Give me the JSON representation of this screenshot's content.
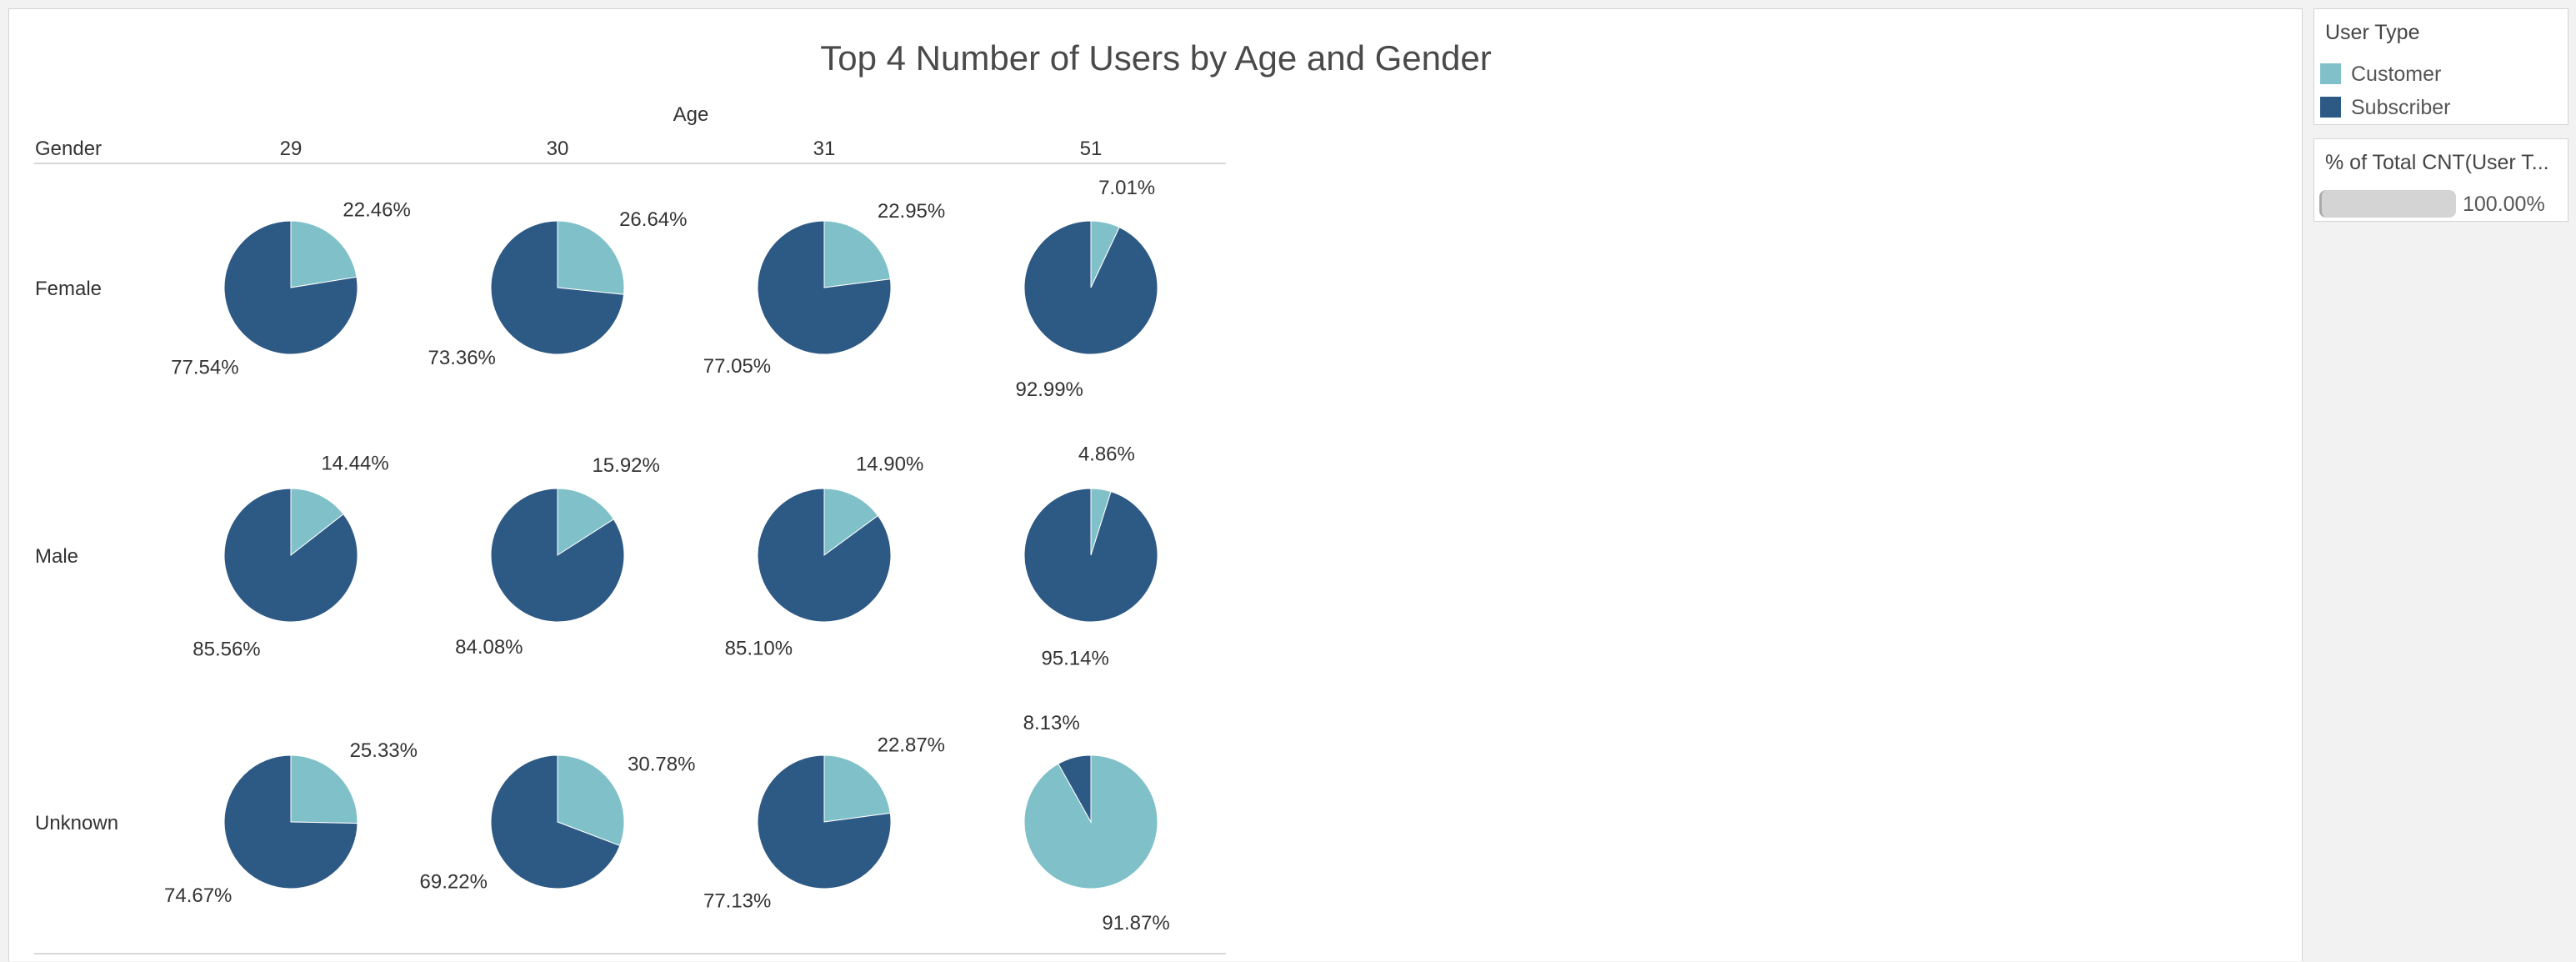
{
  "chart_data": {
    "type": "pie",
    "title": "Top 4 Number of Users by Age and Gender",
    "column_header": "Age",
    "row_header": "Gender",
    "columns": [
      "29",
      "30",
      "31",
      "51"
    ],
    "rows": [
      "Female",
      "Male",
      "Unknown"
    ],
    "series": [
      "Customer",
      "Subscriber"
    ],
    "colors": {
      "Customer": "#80c1c9",
      "Subscriber": "#2d5985"
    },
    "cells": [
      {
        "gender": "Female",
        "age": "29",
        "Customer": 22.46,
        "Subscriber": 77.54,
        "customer_label": "22.46%",
        "subscriber_label": "77.54%"
      },
      {
        "gender": "Female",
        "age": "30",
        "Customer": 26.64,
        "Subscriber": 73.36,
        "customer_label": "26.64%",
        "subscriber_label": "73.36%"
      },
      {
        "gender": "Female",
        "age": "31",
        "Customer": 22.95,
        "Subscriber": 77.05,
        "customer_label": "22.95%",
        "subscriber_label": "77.05%"
      },
      {
        "gender": "Female",
        "age": "51",
        "Customer": 7.01,
        "Subscriber": 92.99,
        "customer_label": "7.01%",
        "subscriber_label": "92.99%"
      },
      {
        "gender": "Male",
        "age": "29",
        "Customer": 14.44,
        "Subscriber": 85.56,
        "customer_label": "14.44%",
        "subscriber_label": "85.56%"
      },
      {
        "gender": "Male",
        "age": "30",
        "Customer": 15.92,
        "Subscriber": 84.08,
        "customer_label": "15.92%",
        "subscriber_label": "84.08%"
      },
      {
        "gender": "Male",
        "age": "31",
        "Customer": 14.9,
        "Subscriber": 85.1,
        "customer_label": "14.90%",
        "subscriber_label": "85.10%"
      },
      {
        "gender": "Male",
        "age": "51",
        "Customer": 4.86,
        "Subscriber": 95.14,
        "customer_label": "4.86%",
        "subscriber_label": "95.14%"
      },
      {
        "gender": "Unknown",
        "age": "29",
        "Customer": 25.33,
        "Subscriber": 74.67,
        "customer_label": "25.33%",
        "subscriber_label": "74.67%"
      },
      {
        "gender": "Unknown",
        "age": "30",
        "Customer": 30.78,
        "Subscriber": 69.22,
        "customer_label": "30.78%",
        "subscriber_label": "69.22%"
      },
      {
        "gender": "Unknown",
        "age": "31",
        "Customer": 22.87,
        "Subscriber": 77.13,
        "customer_label": "22.87%",
        "subscriber_label": "77.13%"
      },
      {
        "gender": "Unknown",
        "age": "51",
        "Customer": 91.87,
        "Subscriber": 8.13,
        "customer_label": "91.87%",
        "subscriber_label": "8.13%"
      }
    ]
  },
  "legend": {
    "title": "User Type",
    "items": [
      {
        "label": "Customer",
        "color": "#80c1c9"
      },
      {
        "label": "Subscriber",
        "color": "#2d5985"
      }
    ]
  },
  "size_legend": {
    "title": "% of Total CNT(User T...",
    "value": "100.00%"
  }
}
